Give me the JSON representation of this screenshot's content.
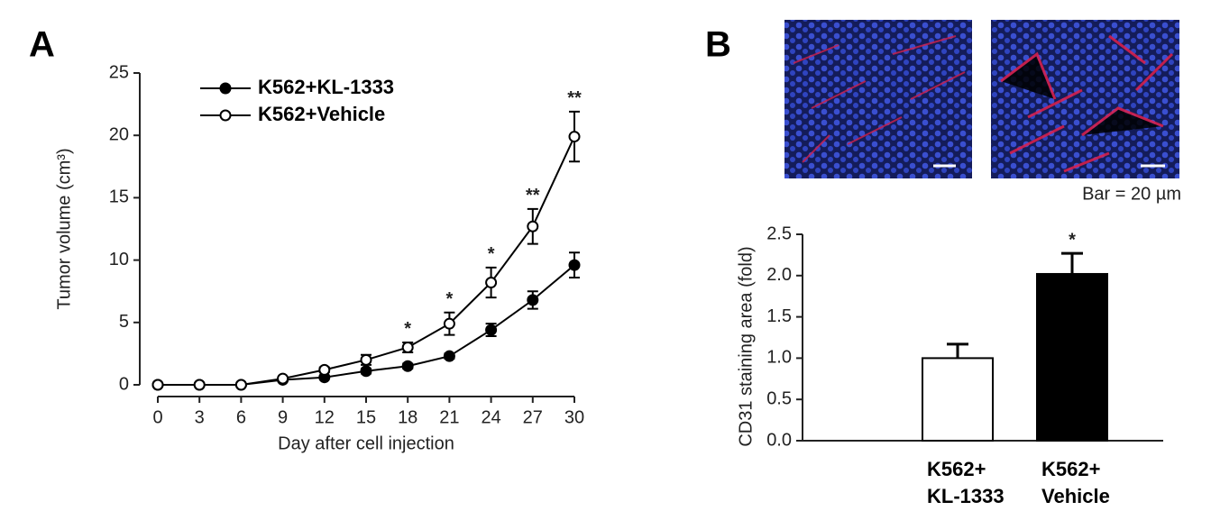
{
  "chart_data": [
    {
      "type": "line",
      "panel_label": "A",
      "y_label": "Tumor volume (cm³)",
      "x_label": "Day after cell injection",
      "x": [
        0,
        3,
        6,
        9,
        12,
        15,
        18,
        21,
        24,
        27,
        30
      ],
      "xlim": [
        0,
        30
      ],
      "xticks": [
        0,
        3,
        6,
        9,
        12,
        15,
        18,
        21,
        24,
        27,
        30
      ],
      "ylim": [
        0,
        25
      ],
      "yticks": [
        0,
        5,
        10,
        15,
        20,
        25
      ],
      "legend": "upper left",
      "series": [
        {
          "name": "K562+KL-1333",
          "color": "#000000",
          "marker": "filled",
          "values": [
            0,
            0,
            0,
            0.4,
            0.6,
            1.1,
            1.5,
            2.3,
            4.4,
            6.8,
            9.6
          ],
          "errors": [
            0,
            0,
            0,
            0.1,
            0.1,
            0.2,
            0.2,
            0.2,
            0.5,
            0.7,
            1.0
          ]
        },
        {
          "name": "K562+Vehicle",
          "color": "#000000",
          "marker": "open",
          "values": [
            0,
            0,
            0,
            0.5,
            1.2,
            2.0,
            3.0,
            4.9,
            8.2,
            12.7,
            19.9
          ],
          "errors": [
            0,
            0,
            0,
            0.1,
            0.2,
            0.4,
            0.4,
            0.9,
            1.2,
            1.4,
            2.0
          ]
        }
      ],
      "annotations": [
        {
          "x": 18,
          "text": "*"
        },
        {
          "x": 21,
          "text": "*"
        },
        {
          "x": 24,
          "text": "*"
        },
        {
          "x": 27,
          "text": "**"
        },
        {
          "x": 30,
          "text": "**"
        }
      ]
    },
    {
      "type": "bar",
      "panel_label": "B",
      "image_caption": "Bar = 20 µm",
      "y_label": "CD31 staining area (fold)",
      "categories": [
        [
          "K562+",
          "KL-1333"
        ],
        [
          "K562+",
          "Vehicle"
        ]
      ],
      "values": [
        1.0,
        2.02
      ],
      "errors": [
        0.17,
        0.25
      ],
      "colors": [
        "#ffffff",
        "#000000"
      ],
      "ylim": [
        0,
        2.5
      ],
      "yticks": [
        {
          "value": 0,
          "label": "0.0"
        },
        0.5,
        {
          "value": 1,
          "label": "1.0"
        },
        1.5,
        {
          "value": 2,
          "label": "2.0"
        },
        2.5
      ],
      "annotations": [
        {
          "category": 1,
          "text": "*"
        }
      ]
    }
  ]
}
